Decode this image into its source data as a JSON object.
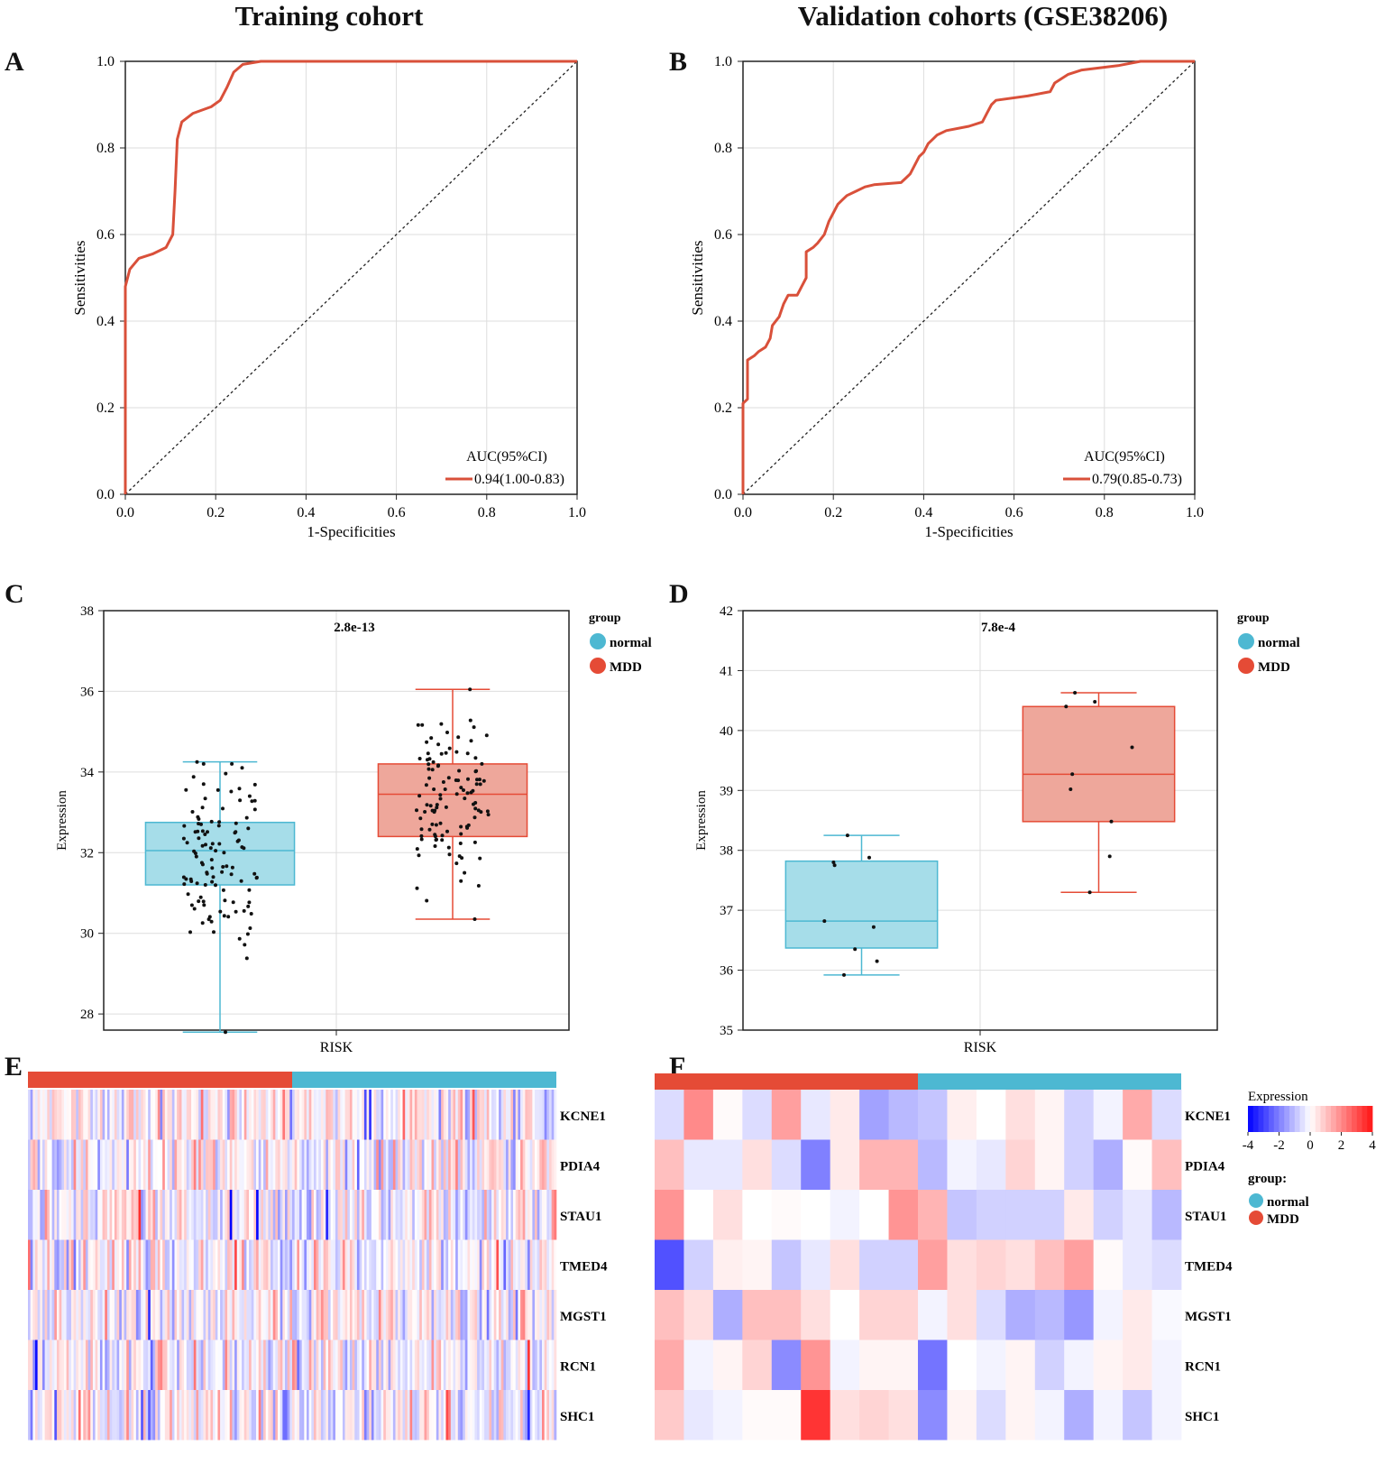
{
  "titles": {
    "left": "Training cohort",
    "right": "Validation cohorts (GSE38206)"
  },
  "panel_letters": {
    "a": "A",
    "b": "B",
    "c": "C",
    "d": "D",
    "e": "E",
    "f": "F"
  },
  "chart_data": [
    {
      "id": "A",
      "type": "line",
      "title": "Training cohort",
      "xlabel": "1-Specificities",
      "ylabel": "Sensitivities",
      "xlim": [
        0,
        1
      ],
      "ylim": [
        0,
        1
      ],
      "xticks": [
        "0.0",
        "0.2",
        "0.4",
        "0.6",
        "0.8",
        "1.0"
      ],
      "yticks": [
        "0.0",
        "0.2",
        "0.4",
        "0.6",
        "0.8",
        "1.0"
      ],
      "legend_title": "AUC(95%CI)",
      "legend_entry": "0.94(1.00-0.83)",
      "legend_position": "bottom-right",
      "line_color": "#d9503a",
      "series": [
        {
          "name": "ROC",
          "points": [
            [
              0,
              0
            ],
            [
              0,
              0.48
            ],
            [
              0.01,
              0.52
            ],
            [
              0.03,
              0.545
            ],
            [
              0.06,
              0.555
            ],
            [
              0.09,
              0.57
            ],
            [
              0.105,
              0.6
            ],
            [
              0.11,
              0.7
            ],
            [
              0.115,
              0.82
            ],
            [
              0.125,
              0.86
            ],
            [
              0.15,
              0.88
            ],
            [
              0.19,
              0.895
            ],
            [
              0.21,
              0.91
            ],
            [
              0.225,
              0.94
            ],
            [
              0.24,
              0.975
            ],
            [
              0.26,
              0.993
            ],
            [
              0.3,
              1.0
            ],
            [
              1.0,
              1.0
            ]
          ]
        }
      ],
      "diagonal": true
    },
    {
      "id": "B",
      "type": "line",
      "title": "Validation cohorts (GSE38206)",
      "xlabel": "1-Specificities",
      "ylabel": "Sensitivities",
      "xlim": [
        0,
        1
      ],
      "ylim": [
        0,
        1
      ],
      "xticks": [
        "0.0",
        "0.2",
        "0.4",
        "0.6",
        "0.8",
        "1.0"
      ],
      "yticks": [
        "0.0",
        "0.2",
        "0.4",
        "0.6",
        "0.8",
        "1.0"
      ],
      "legend_title": "AUC(95%CI)",
      "legend_entry": "0.79(0.85-0.73)",
      "legend_position": "bottom-right",
      "line_color": "#d9503a",
      "series": [
        {
          "name": "ROC",
          "points": [
            [
              0,
              0
            ],
            [
              0,
              0.21
            ],
            [
              0.01,
              0.22
            ],
            [
              0.01,
              0.31
            ],
            [
              0.025,
              0.32
            ],
            [
              0.035,
              0.33
            ],
            [
              0.05,
              0.34
            ],
            [
              0.06,
              0.36
            ],
            [
              0.065,
              0.39
            ],
            [
              0.08,
              0.41
            ],
            [
              0.09,
              0.44
            ],
            [
              0.1,
              0.46
            ],
            [
              0.12,
              0.46
            ],
            [
              0.13,
              0.48
            ],
            [
              0.14,
              0.5
            ],
            [
              0.14,
              0.56
            ],
            [
              0.155,
              0.57
            ],
            [
              0.165,
              0.58
            ],
            [
              0.18,
              0.6
            ],
            [
              0.19,
              0.63
            ],
            [
              0.2,
              0.65
            ],
            [
              0.21,
              0.67
            ],
            [
              0.22,
              0.68
            ],
            [
              0.23,
              0.69
            ],
            [
              0.25,
              0.7
            ],
            [
              0.27,
              0.71
            ],
            [
              0.29,
              0.715
            ],
            [
              0.35,
              0.72
            ],
            [
              0.36,
              0.73
            ],
            [
              0.37,
              0.74
            ],
            [
              0.38,
              0.76
            ],
            [
              0.39,
              0.78
            ],
            [
              0.4,
              0.79
            ],
            [
              0.41,
              0.81
            ],
            [
              0.42,
              0.82
            ],
            [
              0.43,
              0.83
            ],
            [
              0.45,
              0.84
            ],
            [
              0.5,
              0.85
            ],
            [
              0.53,
              0.86
            ],
            [
              0.54,
              0.88
            ],
            [
              0.55,
              0.9
            ],
            [
              0.56,
              0.91
            ],
            [
              0.63,
              0.92
            ],
            [
              0.68,
              0.93
            ],
            [
              0.69,
              0.95
            ],
            [
              0.72,
              0.97
            ],
            [
              0.75,
              0.98
            ],
            [
              0.83,
              0.99
            ],
            [
              0.88,
              1.0
            ],
            [
              1.0,
              1.0
            ]
          ]
        }
      ],
      "diagonal": true
    },
    {
      "id": "C",
      "type": "box",
      "xlabel": "RISK",
      "ylabel": "Expression",
      "ylim": [
        27.6,
        38
      ],
      "yticks": [
        28,
        30,
        32,
        34,
        36,
        38
      ],
      "pvalue": "2.8e-13",
      "legend_title": "group",
      "legend_entries": [
        "normal",
        "MDD"
      ],
      "legend_colors": [
        "#4db8d2",
        "#e54b36"
      ],
      "boxes": [
        {
          "group": "normal",
          "min": 27.55,
          "q1": 31.2,
          "median": 32.05,
          "q3": 32.75,
          "max": 34.25,
          "n_points": 110,
          "spread": 1.3
        },
        {
          "group": "MDD",
          "min": 30.35,
          "q1": 32.4,
          "median": 33.45,
          "q3": 34.2,
          "max": 36.05,
          "n_points": 110,
          "spread": 1.2
        }
      ]
    },
    {
      "id": "D",
      "type": "box",
      "xlabel": "RISK",
      "ylabel": "Expression",
      "ylim": [
        35,
        42
      ],
      "yticks": [
        35,
        36,
        37,
        38,
        39,
        40,
        41,
        42
      ],
      "pvalue": "7.8e-4",
      "legend_title": "group",
      "legend_entries": [
        "normal",
        "MDD"
      ],
      "legend_colors": [
        "#4db8d2",
        "#e54b36"
      ],
      "boxes": [
        {
          "group": "normal",
          "min": 35.92,
          "q1": 36.37,
          "median": 36.82,
          "q3": 37.82,
          "max": 38.25,
          "points": [
            38.25,
            37.88,
            37.8,
            37.75,
            36.82,
            36.72,
            36.35,
            36.15,
            35.92
          ]
        },
        {
          "group": "MDD",
          "min": 37.3,
          "q1": 38.48,
          "median": 39.27,
          "q3": 40.4,
          "max": 40.63,
          "points": [
            40.63,
            40.48,
            40.4,
            39.72,
            39.27,
            39.02,
            38.48,
            37.9,
            37.3
          ]
        }
      ]
    },
    {
      "id": "E",
      "type": "heatmap",
      "genes": [
        "KCNE1",
        "PDIA4",
        "STAU1",
        "TMED4",
        "MGST1",
        "RCN1",
        "SHC1"
      ],
      "n_columns": 220,
      "groups": [
        "MDD",
        "normal"
      ],
      "group_sizes": [
        110,
        110
      ],
      "group_colors": [
        "#e54b36",
        "#4db8d2"
      ],
      "value_range": [
        -4,
        4
      ]
    },
    {
      "id": "F",
      "type": "heatmap",
      "genes": [
        "KCNE1",
        "PDIA4",
        "STAU1",
        "TMED4",
        "MGST1",
        "RCN1",
        "SHC1"
      ],
      "groups": [
        "MDD",
        "normal"
      ],
      "group_sizes": [
        9,
        9
      ],
      "group_colors": [
        "#e54b36",
        "#4db8d2"
      ],
      "legend_title": "Expression",
      "scale_ticks": [
        "-4",
        "-2",
        "0",
        "2",
        "4"
      ],
      "value_range": [
        -4,
        4
      ],
      "group_legend_title": "group:",
      "group_legend_entries": [
        "normal",
        "MDD"
      ],
      "values": [
        [
          -0.3,
          1.1,
          0.05,
          -0.3,
          0.9,
          -0.2,
          0.2,
          -0.8,
          -0.6,
          -0.5,
          0.15,
          0.0,
          0.3,
          0.1,
          -0.4,
          -0.1,
          0.8,
          -0.3
        ],
        [
          0.6,
          -0.2,
          -0.2,
          0.3,
          -0.3,
          -1.1,
          0.2,
          0.7,
          0.7,
          -0.6,
          -0.1,
          -0.2,
          0.4,
          0.1,
          -0.4,
          -0.7,
          0.05,
          0.6
        ],
        [
          1.0,
          0.0,
          0.3,
          0.0,
          0.05,
          0.0,
          -0.1,
          0.0,
          1.0,
          0.7,
          -0.5,
          -0.4,
          -0.4,
          -0.4,
          0.2,
          -0.4,
          -0.2,
          -0.6
        ],
        [
          -1.5,
          -0.4,
          0.15,
          0.1,
          -0.5,
          -0.2,
          0.3,
          -0.4,
          -0.4,
          0.9,
          0.3,
          0.4,
          0.3,
          0.6,
          0.9,
          0.05,
          -0.2,
          -0.3
        ],
        [
          0.6,
          0.3,
          -0.7,
          0.6,
          0.6,
          0.3,
          0.0,
          0.4,
          0.4,
          -0.1,
          0.3,
          -0.3,
          -0.7,
          -0.6,
          -0.9,
          -0.1,
          0.2,
          -0.05
        ],
        [
          0.8,
          -0.1,
          0.1,
          0.4,
          -1.0,
          1.0,
          -0.1,
          0.1,
          0.1,
          -1.2,
          0.0,
          -0.1,
          0.1,
          -0.4,
          -0.1,
          0.1,
          0.2,
          -0.1
        ],
        [
          0.5,
          -0.2,
          -0.1,
          0.05,
          0.05,
          1.9,
          0.3,
          0.4,
          0.3,
          -1.0,
          0.1,
          -0.3,
          0.1,
          -0.1,
          -0.7,
          -0.1,
          -0.5,
          -0.1
        ]
      ]
    }
  ]
}
